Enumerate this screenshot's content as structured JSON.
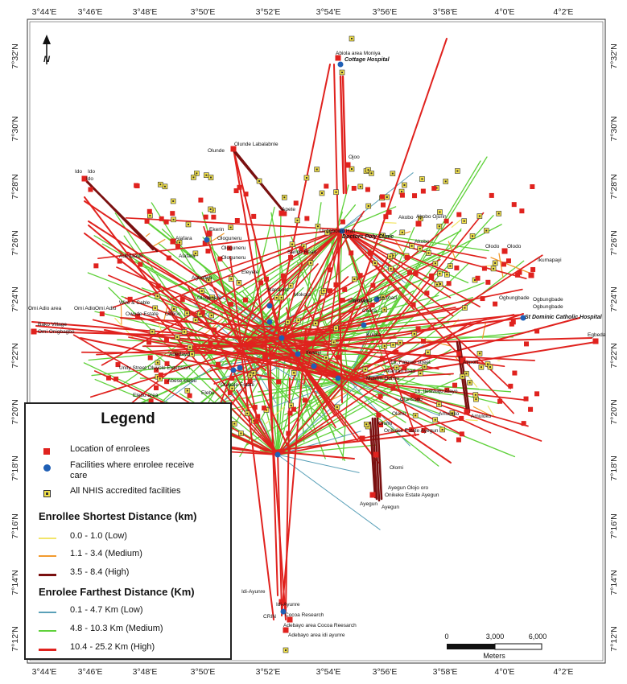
{
  "map": {
    "lon_labels": [
      "3°44'E",
      "3°46'E",
      "3°48'E",
      "3°50'E",
      "3°52'E",
      "3°54'E",
      "3°56'E",
      "3°58'E",
      "4°0'E",
      "4°2'E"
    ],
    "lat_labels": [
      "7°32'N",
      "7°30'N",
      "7°28'N",
      "7°26'N",
      "7°24'N",
      "7°22'N",
      "7°20'N",
      "7°18'N",
      "7°16'N",
      "7°14'N",
      "7°12'N"
    ],
    "north_arrow": "N",
    "scale_bar": {
      "ticks": [
        "0",
        "3,000",
        "6,000"
      ],
      "unit": "Meters"
    },
    "colors": {
      "short_low": "#f2e56a",
      "short_medium": "#f29a2e",
      "short_high": "#7a1010",
      "far_low": "#5aa0b8",
      "far_medium": "#5fd13a",
      "far_high": "#e0221e",
      "enrolee": "#e0221e",
      "facility": "#1f5fb5",
      "nhis": "#f2e14a"
    },
    "hospitals": [
      "Cottage Hospital",
      "Doctors Poly Clinic",
      "St Dominic Catholic Hospital"
    ],
    "place_labels": [
      "Abiola area Moniya",
      "Ojoo",
      "Olunde",
      "Olunde  Labalabnle",
      "Ido",
      "Ido",
      "Ido",
      "Apete",
      "Ui Agbowo Hall",
      "Akobo",
      "Akobo Ojurin",
      "Akobo",
      "Olodo",
      "Olodo",
      "Ikumapayi",
      "Ogbungbade",
      "Ogbungbade",
      "Ogbungbade",
      "Egbeda",
      "Alafara",
      "Ekerin",
      "Ologuneru",
      "Ologuneru",
      "Alafara",
      "Adedaade",
      "Ologuneru",
      "Eleyele",
      "Agbofieti",
      "Barracks",
      "Mokola",
      "Ologuneru",
      "Sango Road",
      "Wire & Cable",
      "Omi Adio area",
      "Omi Adio",
      "Omi Adio",
      "Bako Village",
      "Omi Onigbagbo",
      "Owode Estate",
      "Odooo",
      "Adedayo",
      "Unity Street Oluyole Extension",
      "Abese elebu",
      "Elebu area",
      "Elebu",
      "Oluyole Estate",
      "Iwo road",
      "Iwo road",
      "Celica",
      "Kulola",
      "Olunsogo",
      "Akanran road",
      "Muslim Odinjo",
      "16, Falowo street",
      "16, Ilesiwaju Alayo",
      "Olomi",
      "Olomi",
      "Airport",
      "Amuloko",
      "Amuloko",
      "Onikeke Estate Ayegun",
      "Ayegun Olojo oro",
      "Onikeke Estate Ayegun",
      "Ayegun",
      "Ayegun",
      "Olomi",
      "Idi-Ayunre",
      "Idi-Ayunre",
      "CRIN",
      "Cocoa Research",
      "Adebayo area Cocoa Reesarch",
      "Adebayo area idi ayunre",
      "Ifeanyi",
      "Iwo road"
    ]
  },
  "legend": {
    "title": "Legend",
    "items": [
      {
        "label": "Location of enrolees",
        "symbol": "red-square"
      },
      {
        "label": "Facilities where enrolee receive care",
        "symbol": "blue-circle"
      },
      {
        "label": "All NHIS  accredited facilities",
        "symbol": "nhis-square"
      }
    ],
    "shortest_heading": "Enrollee Shortest Distance (km)",
    "shortest": [
      {
        "label": "0.0 - 1.0 (Low)"
      },
      {
        "label": "1.1 - 3.4 (Medium)"
      },
      {
        "label": "3.5 - 8.4 (High)"
      }
    ],
    "farthest_heading": "Enrolee Farthest Distance (Km)",
    "farthest": [
      {
        "label": "0.1 - 4.7 Km (Low)"
      },
      {
        "label": "4.8 - 10.3 Km (Medium)"
      },
      {
        "label": "10.4 - 25.2 Km (High)"
      }
    ]
  }
}
